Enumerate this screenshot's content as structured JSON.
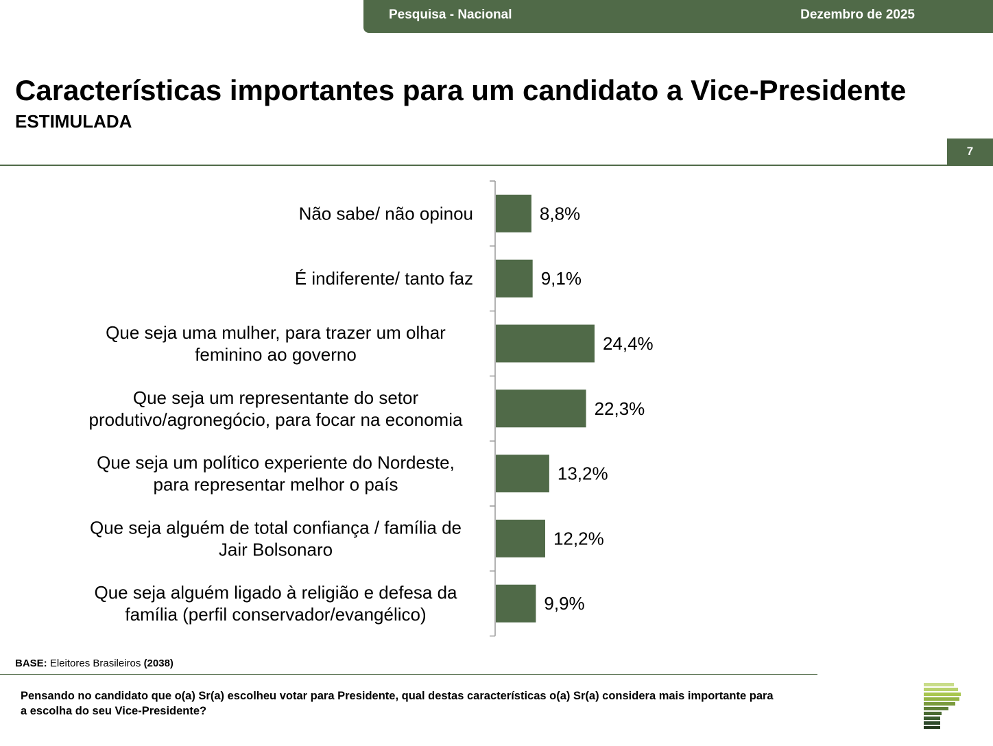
{
  "header": {
    "left": "Pesquisa - Nacional",
    "right": "Dezembro de 2025"
  },
  "title": "Características importantes para um candidato a Vice-Presidente",
  "subtitle": "ESTIMULADA",
  "page_number": "7",
  "chart_data": {
    "type": "bar",
    "orientation": "horizontal",
    "categories": [
      "Não sabe/ não opinou",
      "É indiferente/ tanto faz",
      "Que seja uma mulher, para trazer um olhar feminino ao governo",
      "Que seja um representante do setor produtivo/agronegócio, para focar na economia",
      "Que seja um político experiente do Nordeste, para representar melhor o país",
      "Que seja alguém de total confiança / família de Jair Bolsonaro",
      "Que seja alguém ligado à religião e defesa da família (perfil conservador/evangélico)"
    ],
    "category_lines": [
      [
        "Não sabe/ não opinou"
      ],
      [
        "É indiferente/ tanto faz"
      ],
      [
        "Que seja uma mulher, para trazer um olhar",
        "feminino ao governo"
      ],
      [
        "Que seja um representante do setor",
        "produtivo/agronegócio, para focar na economia"
      ],
      [
        "Que seja um político experiente do Nordeste,",
        "para representar melhor o país"
      ],
      [
        "Que seja alguém de total confiança / família de",
        "Jair Bolsonaro"
      ],
      [
        "Que seja alguém ligado à religião e defesa da",
        "família (perfil conservador/evangélico)"
      ]
    ],
    "values": [
      8.8,
      9.1,
      24.4,
      22.3,
      13.2,
      12.2,
      9.9
    ],
    "value_labels": [
      "8,8%",
      "9,1%",
      "24,4%",
      "22,3%",
      "13,2%",
      "12,2%",
      "9,9%"
    ],
    "color": "#506a48",
    "grid": false,
    "legend": "none"
  },
  "base": {
    "label": "BASE:",
    "text": "Eleitores Brasileiros",
    "count": "(2038)"
  },
  "question": "Pensando no candidato que o(a) Sr(a) escolheu votar para Presidente, qual destas características o(a) Sr(a) considera mais importante para a escolha do seu Vice-Presidente?",
  "colors": {
    "brand_green": "#506a48",
    "logo_light": "#a8c64e",
    "logo_dark": "#2f4a2c"
  },
  "logo": "stacked-bars-logo-icon"
}
